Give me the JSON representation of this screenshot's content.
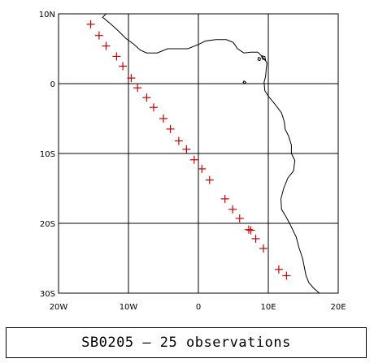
{
  "map": {
    "lon_range": [
      -20,
      20
    ],
    "lat_range": [
      -30,
      10
    ],
    "lon_ticks": [
      {
        "value": -20,
        "label": "20W"
      },
      {
        "value": -10,
        "label": "10W"
      },
      {
        "value": 0,
        "label": "0"
      },
      {
        "value": 10,
        "label": "10E"
      },
      {
        "value": 20,
        "label": "20E"
      }
    ],
    "lat_ticks": [
      {
        "value": 10,
        "label": "10N"
      },
      {
        "value": 0,
        "label": "0"
      },
      {
        "value": -10,
        "label": "10S"
      },
      {
        "value": -20,
        "label": "20S"
      },
      {
        "value": -30,
        "label": "30S"
      }
    ],
    "grid": true,
    "marker_color": "#cc0000",
    "marker_symbol": "plus",
    "observations": [
      [
        -15.4,
        8.5
      ],
      [
        -14.2,
        6.9
      ],
      [
        -13.2,
        5.4
      ],
      [
        -11.7,
        3.9
      ],
      [
        -10.8,
        2.5
      ],
      [
        -9.6,
        0.8
      ],
      [
        -8.7,
        -0.6
      ],
      [
        -7.4,
        -2.0
      ],
      [
        -6.4,
        -3.4
      ],
      [
        -5.0,
        -5.0
      ],
      [
        -4.0,
        -6.5
      ],
      [
        -2.8,
        -8.2
      ],
      [
        -1.7,
        -9.4
      ],
      [
        -0.6,
        -10.9
      ],
      [
        0.5,
        -12.2
      ],
      [
        1.6,
        -13.8
      ],
      [
        3.8,
        -16.5
      ],
      [
        4.9,
        -18.0
      ],
      [
        5.9,
        -19.3
      ],
      [
        7.2,
        -20.9
      ],
      [
        7.5,
        -21.0
      ],
      [
        8.2,
        -22.2
      ],
      [
        9.3,
        -23.6
      ],
      [
        11.5,
        -26.6
      ],
      [
        12.6,
        -27.5
      ]
    ],
    "coastline": [
      [
        -13.2,
        10.0
      ],
      [
        -13.7,
        9.5
      ],
      [
        -12.6,
        8.6
      ],
      [
        -11.5,
        7.6
      ],
      [
        -10.4,
        6.5
      ],
      [
        -9.3,
        5.7
      ],
      [
        -8.3,
        4.8
      ],
      [
        -7.4,
        4.4
      ],
      [
        -5.9,
        4.4
      ],
      [
        -4.4,
        5.0
      ],
      [
        -3.0,
        5.0
      ],
      [
        -1.5,
        5.0
      ],
      [
        0.0,
        5.6
      ],
      [
        1.0,
        6.1
      ],
      [
        2.5,
        6.3
      ],
      [
        4.0,
        6.3
      ],
      [
        5.0,
        5.9
      ],
      [
        5.6,
        5.0
      ],
      [
        6.5,
        4.4
      ],
      [
        7.5,
        4.5
      ],
      [
        8.5,
        4.5
      ],
      [
        9.2,
        3.8
      ],
      [
        9.8,
        3.0
      ],
      [
        9.7,
        2.0
      ],
      [
        9.6,
        1.0
      ],
      [
        9.4,
        0.2
      ],
      [
        9.5,
        -1.0
      ],
      [
        10.0,
        -1.8
      ],
      [
        11.0,
        -3.0
      ],
      [
        11.9,
        -4.2
      ],
      [
        12.3,
        -5.5
      ],
      [
        12.4,
        -6.5
      ],
      [
        12.9,
        -7.5
      ],
      [
        13.3,
        -8.8
      ],
      [
        13.3,
        -10.0
      ],
      [
        13.8,
        -11.0
      ],
      [
        13.6,
        -12.5
      ],
      [
        12.8,
        -13.5
      ],
      [
        12.2,
        -15.0
      ],
      [
        11.8,
        -16.5
      ],
      [
        11.9,
        -18.0
      ],
      [
        12.5,
        -19.0
      ],
      [
        13.2,
        -20.3
      ],
      [
        14.0,
        -22.0
      ],
      [
        14.4,
        -23.5
      ],
      [
        14.9,
        -25.0
      ],
      [
        15.2,
        -26.5
      ],
      [
        15.4,
        -27.5
      ],
      [
        15.8,
        -28.5
      ],
      [
        16.5,
        -29.3
      ],
      [
        17.3,
        -30.0
      ]
    ],
    "islands": [
      [
        [
          8.6,
          3.8
        ],
        [
          8.9,
          3.6
        ],
        [
          8.8,
          3.3
        ],
        [
          8.5,
          3.4
        ],
        [
          8.6,
          3.8
        ]
      ],
      [
        [
          9.0,
          4.0
        ],
        [
          9.5,
          3.9
        ],
        [
          9.6,
          3.4
        ],
        [
          9.2,
          3.5
        ],
        [
          9.0,
          4.0
        ]
      ],
      [
        [
          6.5,
          0.4
        ],
        [
          6.8,
          0.2
        ],
        [
          6.6,
          0.0
        ],
        [
          6.4,
          0.2
        ],
        [
          6.5,
          0.4
        ]
      ]
    ]
  },
  "caption": {
    "text": "SB0205 — 25 observations"
  }
}
